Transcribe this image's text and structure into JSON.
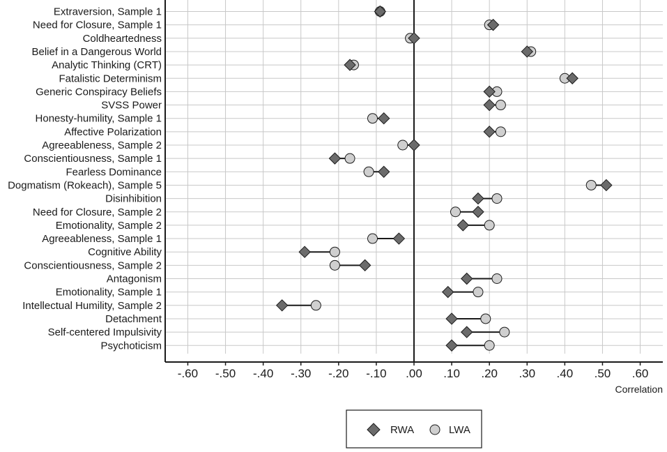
{
  "chart_data": {
    "type": "dot",
    "xlabel": "Correlation",
    "xlim": [
      -0.66,
      0.66
    ],
    "xticks": [
      -0.6,
      -0.5,
      -0.4,
      -0.3,
      -0.2,
      -0.1,
      0.0,
      0.1,
      0.2,
      0.3,
      0.4,
      0.5,
      0.6
    ],
    "xtick_labels": [
      "-.60",
      "-.50",
      "-.40",
      "-.30",
      "-.20",
      "-.10",
      ".00",
      ".10",
      ".20",
      ".30",
      ".40",
      ".50",
      ".60"
    ],
    "grid": true,
    "legend_position": "bottom-center",
    "categories": [
      "Extraversion, Sample 1",
      "Need for Closure, Sample 1",
      "Coldheartedness",
      "Belief in a Dangerous World",
      "Analytic Thinking (CRT)",
      "Fatalistic Determinism",
      "Generic Conspiracy Beliefs",
      "SVSS Power",
      "Honesty-humility, Sample 1",
      "Affective Polarization",
      "Agreeableness, Sample 2",
      "Conscientiousness, Sample 1",
      "Fearless Dominance",
      "Dogmatism (Rokeach), Sample 5",
      "Disinhibition",
      "Need for Closure, Sample 2",
      "Emotionality, Sample 2",
      "Agreeableness, Sample 1",
      "Cognitive Ability",
      "Conscientiousness, Sample 2",
      "Antagonism",
      "Emotionality, Sample 1",
      "Intellectual Humility, Sample 2",
      "Detachment",
      "Self-centered Impulsivity",
      "Psychoticism"
    ],
    "series": [
      {
        "name": "RWA",
        "marker": "diamond",
        "color": "#6b6b6b",
        "values": [
          -0.09,
          0.21,
          0.0,
          0.3,
          -0.17,
          0.42,
          0.2,
          0.2,
          -0.08,
          0.2,
          0.0,
          -0.21,
          -0.08,
          0.51,
          0.17,
          0.17,
          0.13,
          -0.04,
          -0.29,
          -0.13,
          0.14,
          0.09,
          -0.35,
          0.1,
          0.14,
          0.1
        ]
      },
      {
        "name": "LWA",
        "marker": "circle",
        "color": "#cfcfcf",
        "values": [
          -0.09,
          0.2,
          -0.01,
          0.31,
          -0.16,
          0.4,
          0.22,
          0.23,
          -0.11,
          0.23,
          -0.03,
          -0.17,
          -0.12,
          0.47,
          0.22,
          0.11,
          0.2,
          -0.11,
          -0.21,
          -0.21,
          0.22,
          0.17,
          -0.26,
          0.19,
          0.24,
          0.2
        ]
      }
    ],
    "colors": {
      "grid": "#c8c8c8",
      "axis": "#1a1a1a",
      "connector": "#1a1a1a",
      "zero_line": "#1a1a1a"
    }
  }
}
